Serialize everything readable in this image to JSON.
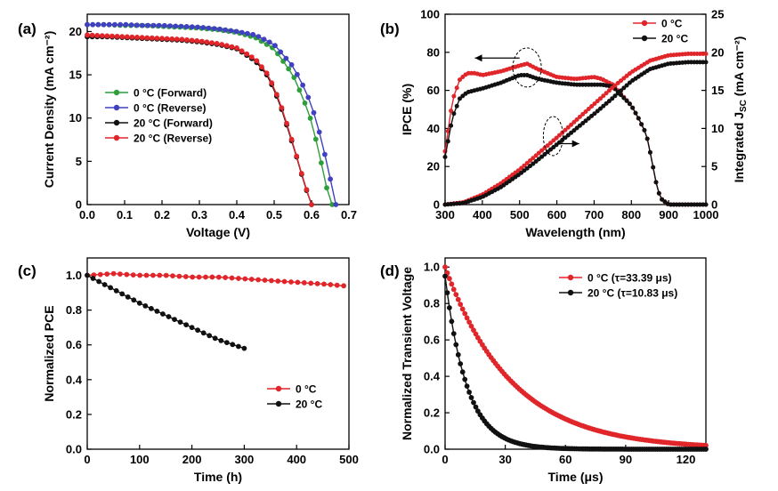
{
  "chart_data": [
    {
      "id": "a",
      "panel_label": "(a)",
      "type": "line",
      "xlabel": "Voltage (V)",
      "ylabel": "Current Density (mA cm⁻²)",
      "xlim": [
        0.0,
        0.7
      ],
      "ylim": [
        0,
        22
      ],
      "xticks": [
        "0.0",
        "0.1",
        "0.2",
        "0.3",
        "0.4",
        "0.5",
        "0.6",
        "0.7"
      ],
      "yticks": [
        "0",
        "5",
        "10",
        "15",
        "20"
      ],
      "legend_position": "center-left",
      "series": [
        {
          "name": "0 °C (Forward)",
          "color": "#2e9e3a",
          "x": [
            0.0,
            0.05,
            0.1,
            0.15,
            0.2,
            0.25,
            0.3,
            0.35,
            0.4,
            0.45,
            0.5,
            0.55,
            0.58,
            0.6,
            0.62,
            0.63,
            0.64,
            0.65,
            0.655
          ],
          "y": [
            20.8,
            20.8,
            20.7,
            20.7,
            20.6,
            20.5,
            20.4,
            20.2,
            19.9,
            19.3,
            18.0,
            15.0,
            12.0,
            9.6,
            6.0,
            4.0,
            2.0,
            0.4,
            0.0
          ]
        },
        {
          "name": "0 °C (Reverse)",
          "color": "#4040c0",
          "x": [
            0.0,
            0.05,
            0.1,
            0.15,
            0.2,
            0.25,
            0.3,
            0.35,
            0.4,
            0.45,
            0.5,
            0.55,
            0.58,
            0.6,
            0.62,
            0.64,
            0.65,
            0.66,
            0.665
          ],
          "y": [
            20.8,
            20.8,
            20.8,
            20.7,
            20.7,
            20.6,
            20.5,
            20.3,
            20.0,
            19.6,
            18.5,
            16.0,
            13.5,
            11.5,
            8.5,
            5.0,
            3.0,
            0.8,
            0.0
          ]
        },
        {
          "name": "20 °C (Forward)",
          "color": "#111111",
          "x": [
            0.0,
            0.05,
            0.1,
            0.15,
            0.2,
            0.25,
            0.3,
            0.35,
            0.4,
            0.45,
            0.48,
            0.5,
            0.52,
            0.54,
            0.56,
            0.58,
            0.59,
            0.6
          ],
          "y": [
            19.4,
            19.4,
            19.3,
            19.2,
            19.1,
            19.0,
            18.8,
            18.5,
            18.0,
            16.6,
            15.0,
            13.3,
            11.0,
            8.3,
            5.5,
            2.5,
            1.2,
            0.0
          ]
        },
        {
          "name": "20 °C (Reverse)",
          "color": "#e0262a",
          "x": [
            0.0,
            0.05,
            0.1,
            0.15,
            0.2,
            0.25,
            0.3,
            0.35,
            0.4,
            0.45,
            0.48,
            0.5,
            0.52,
            0.54,
            0.56,
            0.58,
            0.59,
            0.6
          ],
          "y": [
            19.6,
            19.5,
            19.4,
            19.3,
            19.2,
            19.1,
            18.9,
            18.6,
            18.1,
            16.8,
            15.2,
            13.5,
            11.2,
            8.5,
            5.6,
            2.6,
            1.3,
            0.0
          ]
        }
      ]
    },
    {
      "id": "b",
      "panel_label": "(b)",
      "type": "line",
      "xlabel": "Wavelength (nm)",
      "ylabel": "IPCE (%)",
      "ylabel_right": "Integrated J",
      "ylabel_right_sub": "SC",
      "ylabel_right_unit": " (mA cm⁻²)",
      "xlim": [
        300,
        1000
      ],
      "ylim": [
        0,
        100
      ],
      "ylim_right": [
        0,
        25
      ],
      "xticks": [
        "300",
        "400",
        "500",
        "600",
        "700",
        "800",
        "900",
        "1000"
      ],
      "yticks": [
        "0",
        "20",
        "40",
        "60",
        "80",
        "100"
      ],
      "yticks_right": [
        "0",
        "5",
        "10",
        "15",
        "20",
        "25"
      ],
      "legend_position": "top-right",
      "series": [
        {
          "name": "0 °C",
          "color": "#e0262a",
          "axis": "left",
          "x": [
            300,
            320,
            340,
            360,
            380,
            400,
            450,
            500,
            520,
            550,
            600,
            650,
            700,
            720,
            750,
            800,
            820,
            840,
            850,
            860,
            870,
            880,
            900,
            950,
            1000
          ],
          "y": [
            28,
            55,
            66,
            69,
            69,
            68,
            70,
            73,
            74,
            71,
            67,
            66,
            67,
            66,
            63,
            52,
            45,
            37,
            28,
            18,
            8,
            3,
            0,
            0,
            0
          ]
        },
        {
          "name": "20 °C",
          "color": "#111111",
          "axis": "left",
          "x": [
            300,
            320,
            340,
            360,
            380,
            400,
            450,
            500,
            520,
            550,
            600,
            650,
            700,
            720,
            750,
            800,
            820,
            840,
            850,
            860,
            870,
            880,
            900,
            950,
            1000
          ],
          "y": [
            25,
            46,
            56,
            59,
            60,
            61,
            64,
            68,
            68,
            66,
            64,
            63,
            63,
            63,
            62,
            52,
            45,
            37,
            28,
            18,
            8,
            3,
            0,
            0,
            0
          ]
        },
        {
          "name": "0 °C",
          "color": "#e0262a",
          "axis": "right",
          "x": [
            300,
            350,
            400,
            450,
            500,
            550,
            600,
            650,
            700,
            750,
            800,
            850,
            900,
            950,
            1000
          ],
          "y": [
            0,
            0.3,
            1.3,
            2.8,
            4.6,
            6.7,
            8.8,
            11.0,
            13.2,
            15.4,
            17.4,
            18.9,
            19.6,
            19.8,
            19.8
          ]
        },
        {
          "name": "20 °C",
          "color": "#111111",
          "axis": "right",
          "x": [
            300,
            350,
            400,
            450,
            500,
            550,
            600,
            650,
            700,
            750,
            800,
            850,
            900,
            950,
            1000
          ],
          "y": [
            0,
            0.2,
            1.0,
            2.3,
            4.0,
            5.9,
            7.9,
            9.9,
            11.9,
            14.0,
            16.2,
            17.8,
            18.5,
            18.7,
            18.7
          ]
        }
      ]
    },
    {
      "id": "c",
      "panel_label": "(c)",
      "type": "line",
      "xlabel": "Time (h)",
      "ylabel": "Normalized PCE",
      "xlim": [
        0,
        500
      ],
      "ylim": [
        0.0,
        1.1
      ],
      "xticks": [
        "0",
        "100",
        "200",
        "300",
        "400",
        "500"
      ],
      "yticks": [
        "0.0",
        "0.2",
        "0.4",
        "0.6",
        "0.8",
        "1.0"
      ],
      "legend_position": "bottom-right",
      "series": [
        {
          "name": "0 °C",
          "color": "#e0262a",
          "x": [
            0,
            50,
            100,
            150,
            200,
            250,
            300,
            350,
            400,
            450,
            490
          ],
          "y": [
            1.0,
            1.01,
            1.0,
            1.0,
            0.99,
            0.99,
            0.98,
            0.97,
            0.96,
            0.95,
            0.94
          ]
        },
        {
          "name": "20 °C",
          "color": "#111111",
          "x": [
            0,
            50,
            100,
            150,
            200,
            250,
            300
          ],
          "y": [
            1.0,
            0.92,
            0.84,
            0.77,
            0.7,
            0.63,
            0.58
          ]
        }
      ]
    },
    {
      "id": "d",
      "panel_label": "(d)",
      "type": "line",
      "xlabel": "Time (μs)",
      "ylabel": "Normalized Transient Voltage",
      "xlim": [
        0,
        130
      ],
      "ylim": [
        0.0,
        1.05
      ],
      "xticks": [
        "0",
        "30",
        "60",
        "90",
        "120"
      ],
      "yticks": [
        "0.0",
        "0.2",
        "0.4",
        "0.6",
        "0.8",
        "1.0"
      ],
      "legend_position": "top-right",
      "series": [
        {
          "name": "0 °C (τ=33.39 μs)",
          "color": "#e0262a",
          "decay_tau": 33.39,
          "y0": 1.0
        },
        {
          "name": "20 °C (τ=10.83 μs)",
          "color": "#111111",
          "decay_tau": 10.83,
          "y0": 0.95
        }
      ]
    }
  ],
  "annotations": {
    "b_arrow_left": "IPCE curves, left axis",
    "b_arrow_right": "Integrated JSC curves, right axis"
  }
}
